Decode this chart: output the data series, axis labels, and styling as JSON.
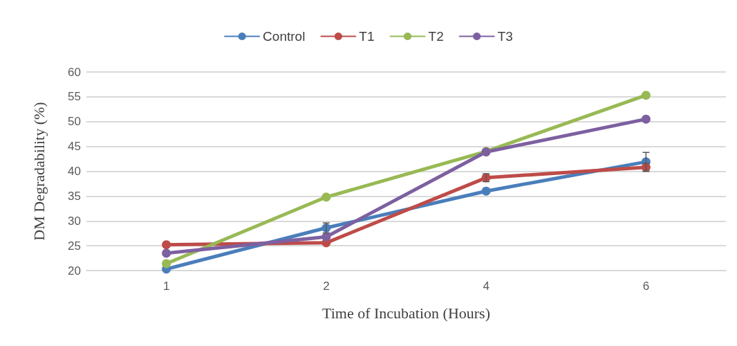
{
  "chart_data": {
    "type": "line",
    "xlabel": "Time of Incubation (Hours)",
    "ylabel": "DM Degradability (%)",
    "categories": [
      "1",
      "2",
      "4",
      "6"
    ],
    "ylim": [
      20,
      60
    ],
    "yticks": [
      20,
      25,
      30,
      35,
      40,
      45,
      50,
      55,
      60
    ],
    "grid": "y",
    "legend": "top",
    "marker": "circle",
    "line_style": "solid",
    "series": [
      {
        "name": "Control",
        "color": "#4a7ebb",
        "values": [
          20.3,
          28.6,
          36.0,
          41.9
        ],
        "errors": [
          null,
          1.0,
          null,
          1.9
        ]
      },
      {
        "name": "T1",
        "color": "#be4b48",
        "values": [
          25.2,
          25.6,
          38.7,
          40.8
        ],
        "errors": [
          null,
          null,
          0.8,
          0.8
        ]
      },
      {
        "name": "T2",
        "color": "#98b954",
        "values": [
          21.4,
          34.8,
          44.0,
          55.3
        ]
      },
      {
        "name": "T3",
        "color": "#7d60a0",
        "values": [
          23.5,
          26.8,
          43.9,
          50.5
        ]
      }
    ]
  }
}
